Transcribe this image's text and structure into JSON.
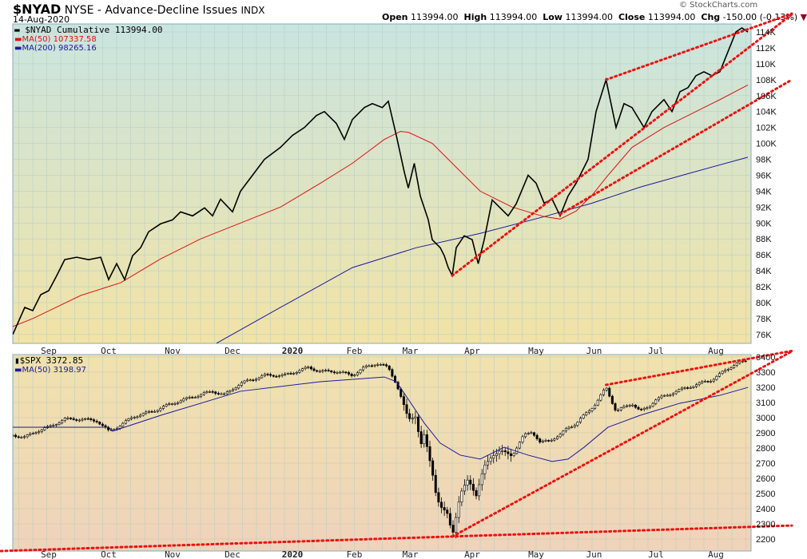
{
  "header": {
    "symbol": "$NYAD",
    "name": "NYSE - Advance-Decline Issues",
    "exchange": "INDX",
    "date": "14-Aug-2020",
    "copyright": "© StockCharts.com",
    "open_label": "Open",
    "open": "113994.00",
    "high_label": "High",
    "high": "113994.00",
    "low_label": "Low",
    "low": "113994.00",
    "close_label": "Close",
    "close": "113994.00",
    "chg_label": "Chg",
    "chg": "-150.00 (-0.13%)"
  },
  "colors": {
    "price": "#000000",
    "ma50": "#dd1111",
    "ma200": "#1a1a9c",
    "trend": "#ee1111"
  },
  "chart_data": [
    {
      "type": "line",
      "title": "$NYAD Cumulative",
      "x_unit": "days since 14-Aug-2019",
      "y_unit": "thousands",
      "ylim": [
        74,
        116
      ],
      "y_ticks": [
        "76K",
        "78K",
        "80K",
        "82K",
        "84K",
        "86K",
        "88K",
        "90K",
        "92K",
        "94K",
        "96K",
        "98K",
        "100K",
        "102K",
        "104K",
        "106K",
        "108K",
        "110K",
        "112K",
        "114K"
      ],
      "months": [
        {
          "label": "Sep",
          "day": 18
        },
        {
          "label": "Oct",
          "day": 48
        },
        {
          "label": "Nov",
          "day": 80
        },
        {
          "label": "Dec",
          "day": 110
        },
        {
          "label": "2020",
          "day": 140,
          "bold": true
        },
        {
          "label": "Feb",
          "day": 171
        },
        {
          "label": "Mar",
          "day": 199
        },
        {
          "label": "Apr",
          "day": 230
        },
        {
          "label": "May",
          "day": 262
        },
        {
          "label": "Jun",
          "day": 291
        },
        {
          "label": "Jul",
          "day": 322
        },
        {
          "label": "Aug",
          "day": 352
        }
      ],
      "legend": [
        {
          "text": "$NYAD Cumulative 113994.00",
          "color": "#000000"
        },
        {
          "text": "MA(50) 107337.58",
          "color": "#dd1111"
        },
        {
          "text": "MA(200) 98265.16",
          "color": "#1a1a9c"
        }
      ],
      "series": [
        {
          "name": "$NYAD Cumulative",
          "points": [
            [
              0,
              76
            ],
            [
              6,
              79.4
            ],
            [
              10,
              79
            ],
            [
              14,
              81
            ],
            [
              18,
              81.5
            ],
            [
              22,
              83.4
            ],
            [
              26,
              85.4
            ],
            [
              32,
              85.7
            ],
            [
              38,
              85.4
            ],
            [
              44,
              85.7
            ],
            [
              48,
              82.9
            ],
            [
              52,
              84.9
            ],
            [
              56,
              82.9
            ],
            [
              60,
              85.9
            ],
            [
              64,
              86.9
            ],
            [
              68,
              88.9
            ],
            [
              74,
              89.9
            ],
            [
              80,
              90.4
            ],
            [
              84,
              91.4
            ],
            [
              90,
              90.9
            ],
            [
              96,
              91.9
            ],
            [
              100,
              90.9
            ],
            [
              104,
              93
            ],
            [
              110,
              91.4
            ],
            [
              114,
              94
            ],
            [
              120,
              96
            ],
            [
              126,
              98
            ],
            [
              134,
              99.5
            ],
            [
              140,
              101
            ],
            [
              146,
              102
            ],
            [
              152,
              103.5
            ],
            [
              156,
              104
            ],
            [
              162,
              102.5
            ],
            [
              166,
              100.5
            ],
            [
              170,
              103
            ],
            [
              176,
              104.5
            ],
            [
              180,
              105
            ],
            [
              185,
              104.5
            ],
            [
              188,
              105.3
            ],
            [
              192,
              101
            ],
            [
              196,
              96.4
            ],
            [
              198,
              94.4
            ],
            [
              201,
              97.5
            ],
            [
              204,
              93.4
            ],
            [
              208,
              90.4
            ],
            [
              210,
              87.9
            ],
            [
              214,
              86.9
            ],
            [
              216,
              85.9
            ],
            [
              218,
              84.4
            ],
            [
              220,
              83.4
            ],
            [
              222,
              86.9
            ],
            [
              226,
              88.4
            ],
            [
              230,
              87.9
            ],
            [
              233,
              84.9
            ],
            [
              236,
              87.9
            ],
            [
              240,
              92.9
            ],
            [
              244,
              91.9
            ],
            [
              248,
              90.9
            ],
            [
              252,
              92.4
            ],
            [
              258,
              96
            ],
            [
              262,
              95
            ],
            [
              266,
              92.5
            ],
            [
              270,
              93
            ],
            [
              274,
              90.9
            ],
            [
              278,
              93.4
            ],
            [
              282,
              95
            ],
            [
              288,
              98
            ],
            [
              292,
              104
            ],
            [
              297,
              108
            ],
            [
              302,
              102
            ],
            [
              306,
              105
            ],
            [
              310,
              104.5
            ],
            [
              316,
              102
            ],
            [
              320,
              104
            ],
            [
              326,
              105.5
            ],
            [
              330,
              104
            ],
            [
              334,
              106.5
            ],
            [
              338,
              107
            ],
            [
              342,
              108.5
            ],
            [
              346,
              109
            ],
            [
              350,
              108.5
            ],
            [
              354,
              109
            ],
            [
              358,
              111.5
            ],
            [
              362,
              114
            ],
            [
              365,
              114.5
            ],
            [
              368,
              113.994
            ]
          ]
        },
        {
          "name": "MA(50)",
          "points": [
            [
              0,
              77
            ],
            [
              10,
              78
            ],
            [
              34,
              80.9
            ],
            [
              54,
              82.5
            ],
            [
              74,
              85.5
            ],
            [
              94,
              88
            ],
            [
              114,
              90
            ],
            [
              134,
              92
            ],
            [
              154,
              95
            ],
            [
              170,
              97.5
            ],
            [
              186,
              100.5
            ],
            [
              194,
              101.5
            ],
            [
              198,
              101.4
            ],
            [
              210,
              100
            ],
            [
              222,
              97
            ],
            [
              234,
              94
            ],
            [
              250,
              92
            ],
            [
              266,
              90.8
            ],
            [
              274,
              90.5
            ],
            [
              282,
              91.5
            ],
            [
              290,
              93.5
            ],
            [
              298,
              96
            ],
            [
              310,
              99.5
            ],
            [
              326,
              102
            ],
            [
              342,
              104
            ],
            [
              354,
              105.5
            ],
            [
              368,
              107.338
            ]
          ]
        },
        {
          "name": "MA(200)",
          "points": [
            [
              102,
              74.9
            ],
            [
              134,
              79.4
            ],
            [
              170,
              84.4
            ],
            [
              202,
              86.9
            ],
            [
              234,
              88.7
            ],
            [
              266,
              90.8
            ],
            [
              290,
              92.5
            ],
            [
              314,
              94.5
            ],
            [
              338,
              96.2
            ],
            [
              368,
              98.265
            ]
          ]
        }
      ],
      "trendlines": [
        [
          [
            220,
            83.4
          ],
          [
            390,
            116.2
          ]
        ],
        [
          [
            297,
            108
          ],
          [
            390,
            116.3
          ]
        ],
        [
          [
            274,
            91.1
          ],
          [
            390,
            108
          ]
        ]
      ]
    },
    {
      "type": "candlestick",
      "title": "$SPX",
      "x_unit": "days since 14-Aug-2019",
      "ylim": [
        2150,
        3420
      ],
      "y_ticks": [
        "2200",
        "2300",
        "2400",
        "2500",
        "2600",
        "2700",
        "2800",
        "2900",
        "3000",
        "3100",
        "3200",
        "3300",
        "3400"
      ],
      "months": [
        {
          "label": "Sep",
          "day": 18
        },
        {
          "label": "Oct",
          "day": 48
        },
        {
          "label": "Nov",
          "day": 80
        },
        {
          "label": "Dec",
          "day": 110
        },
        {
          "label": "2020",
          "day": 140,
          "bold": true
        },
        {
          "label": "Feb",
          "day": 171
        },
        {
          "label": "Mar",
          "day": 199
        },
        {
          "label": "Apr",
          "day": 230
        },
        {
          "label": "May",
          "day": 262
        },
        {
          "label": "Jun",
          "day": 291
        },
        {
          "label": "Jul",
          "day": 322
        },
        {
          "label": "Aug",
          "day": 352
        }
      ],
      "legend": [
        {
          "text": "$SPX 3372.85",
          "color": "#000000"
        },
        {
          "text": "MA(50) 3198.97",
          "color": "#1a1a9c"
        }
      ],
      "series": [
        {
          "name": "$SPX close",
          "points": [
            [
              0,
              2884
            ],
            [
              6,
              2870
            ],
            [
              12,
              2911
            ],
            [
              18,
              2937
            ],
            [
              26,
              2990
            ],
            [
              34,
              2990
            ],
            [
              42,
              2980
            ],
            [
              48,
              2911
            ],
            [
              54,
              2950
            ],
            [
              60,
              3005
            ],
            [
              70,
              3042
            ],
            [
              80,
              3095
            ],
            [
              90,
              3137
            ],
            [
              100,
              3174
            ],
            [
              106,
              3150
            ],
            [
              114,
              3226
            ],
            [
              126,
              3279
            ],
            [
              136,
              3279
            ],
            [
              142,
              3305
            ],
            [
              148,
              3330
            ],
            [
              154,
              3305
            ],
            [
              162,
              3305
            ],
            [
              170,
              3279
            ],
            [
              176,
              3330
            ],
            [
              182,
              3358
            ],
            [
              188,
              3330
            ],
            [
              192,
              3226
            ],
            [
              196,
              3068
            ],
            [
              198,
              2990
            ],
            [
              202,
              3015
            ],
            [
              204,
              2805
            ],
            [
              206,
              2884
            ],
            [
              210,
              2647
            ],
            [
              212,
              2490
            ],
            [
              214,
              2410
            ],
            [
              218,
              2358
            ],
            [
              220,
              2226
            ],
            [
              224,
              2490
            ],
            [
              228,
              2595
            ],
            [
              232,
              2490
            ],
            [
              236,
              2674
            ],
            [
              240,
              2753
            ],
            [
              244,
              2779
            ],
            [
              250,
              2753
            ],
            [
              256,
              2884
            ],
            [
              260,
              2911
            ],
            [
              264,
              2832
            ],
            [
              270,
              2860
            ],
            [
              274,
              2884
            ],
            [
              278,
              2937
            ],
            [
              282,
              2960
            ],
            [
              288,
              3042
            ],
            [
              292,
              3095
            ],
            [
              297,
              3200
            ],
            [
              302,
              3042
            ],
            [
              306,
              3068
            ],
            [
              310,
              3095
            ],
            [
              314,
              3042
            ],
            [
              318,
              3068
            ],
            [
              322,
              3121
            ],
            [
              328,
              3150
            ],
            [
              332,
              3174
            ],
            [
              338,
              3200
            ],
            [
              344,
              3226
            ],
            [
              350,
              3250
            ],
            [
              356,
              3305
            ],
            [
              362,
              3358
            ],
            [
              368,
              3372.85
            ]
          ]
        },
        {
          "name": "MA(50)",
          "points": [
            [
              0,
              2937
            ],
            [
              48,
              2937
            ],
            [
              50,
              2911
            ],
            [
              74,
              3015
            ],
            [
              114,
              3174
            ],
            [
              154,
              3237
            ],
            [
              186,
              3268
            ],
            [
              192,
              3237
            ],
            [
              198,
              3121
            ],
            [
              206,
              2964
            ],
            [
              214,
              2832
            ],
            [
              224,
              2753
            ],
            [
              234,
              2727
            ],
            [
              246,
              2805
            ],
            [
              258,
              2753
            ],
            [
              270,
              2711
            ],
            [
              278,
              2727
            ],
            [
              286,
              2805
            ],
            [
              298,
              2937
            ],
            [
              314,
              3015
            ],
            [
              334,
              3095
            ],
            [
              354,
              3147
            ],
            [
              368,
              3198.97
            ]
          ]
        }
      ],
      "trendlines": [
        [
          [
            220,
            2216
          ],
          [
            390,
            3437
          ]
        ],
        [
          [
            297,
            3216
          ],
          [
            390,
            3440
          ]
        ],
        [
          [
            -6,
            2121
          ],
          [
            390,
            2289
          ]
        ]
      ]
    }
  ]
}
